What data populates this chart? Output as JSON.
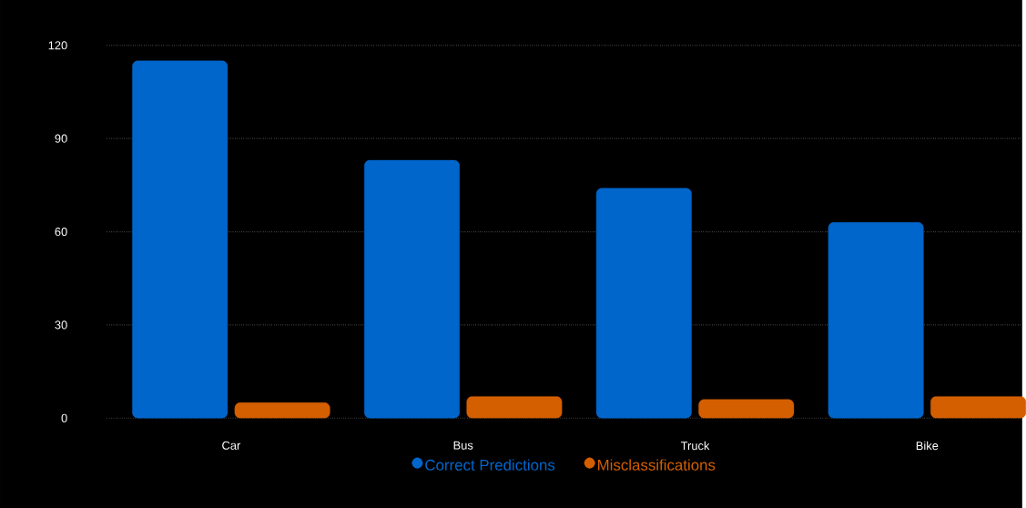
{
  "chart_data": {
    "type": "bar",
    "categories": [
      "Car",
      "Bus",
      "Truck",
      "Bike"
    ],
    "series": [
      {
        "name": "Correct Predictions",
        "color": "#0066cc",
        "values": [
          115,
          83,
          74,
          63
        ]
      },
      {
        "name": "Misclassifications",
        "color": "#d45f00",
        "values": [
          5,
          7,
          6,
          7
        ]
      }
    ],
    "ylim": [
      0,
      120
    ],
    "yticks": [
      0,
      30,
      60,
      90,
      120
    ],
    "grid": "y",
    "legend": "bottom"
  }
}
